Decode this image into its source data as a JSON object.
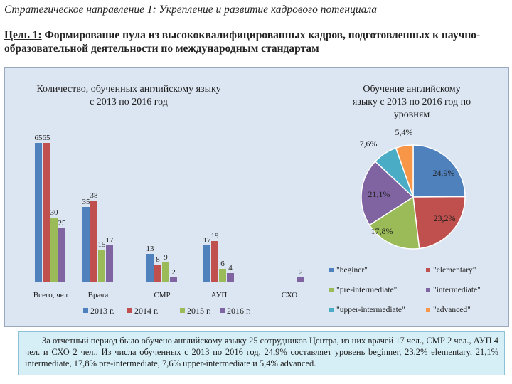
{
  "heading": "Стратегическое направление 1: Укрепление и развитие кадрового потенциала",
  "goal": {
    "label": "Цель 1:",
    "text": " Формирование пула из высококвалифицированных кадров, подготовленных к научно-образовательной деятельности по международным стандартам"
  },
  "summary": "За отчетный период было обучено английскому языку 25 сотрудников Центра, из них врачей 17 чел., СМР 2 чел., АУП 4 чел. и СХО 2 чел.. Из числа обученных с 2013 по 2016 год, 24,9% составляет уровень beginner, 23,2% elementary, 21,1% intermediate, 17,8% pre-intermediate, 7,6% upper-intermediate и 5,4% advanced.",
  "chart_data": [
    {
      "type": "bar",
      "title": "Количество, обученных английскому языку с 2013 по 2016 год",
      "categories": [
        "Всего, чел",
        "Врачи",
        "СМР",
        "АУП",
        "СХО"
      ],
      "series": [
        {
          "name": "2013 г.",
          "color": "#4f81bd",
          "values": [
            65,
            35,
            13,
            17,
            null
          ]
        },
        {
          "name": "2014 г.",
          "color": "#c0504d",
          "values": [
            65,
            38,
            8,
            19,
            null
          ]
        },
        {
          "name": "2015 г.",
          "color": "#9bbb59",
          "values": [
            30,
            15,
            9,
            6,
            null
          ]
        },
        {
          "name": "2016 г.",
          "color": "#8064a2",
          "values": [
            25,
            17,
            2,
            4,
            2
          ]
        }
      ],
      "legend": "bottom",
      "grid": false
    },
    {
      "type": "pie",
      "title": "Обучение английскому языку с 2013 по 2016 год по уровням",
      "slices": [
        {
          "name": "\"beginer\"",
          "value": 24.9,
          "label": "24,9%",
          "color": "#4f81bd"
        },
        {
          "name": "\"elementary\"",
          "value": 23.2,
          "label": "23,2%",
          "color": "#c0504d"
        },
        {
          "name": "\"pre-intermediate\"",
          "value": 17.8,
          "label": "17,8%",
          "color": "#9bbb59"
        },
        {
          "name": "\"intermediate\"",
          "value": 21.1,
          "label": "21,1%",
          "color": "#8064a2"
        },
        {
          "name": "\"upper-intermediate\"",
          "value": 7.6,
          "label": "7,6%",
          "color": "#4bacc6"
        },
        {
          "name": "\"advanced\"",
          "value": 5.4,
          "label": "5,4%",
          "color": "#f79646"
        }
      ],
      "legend": "bottom"
    }
  ]
}
